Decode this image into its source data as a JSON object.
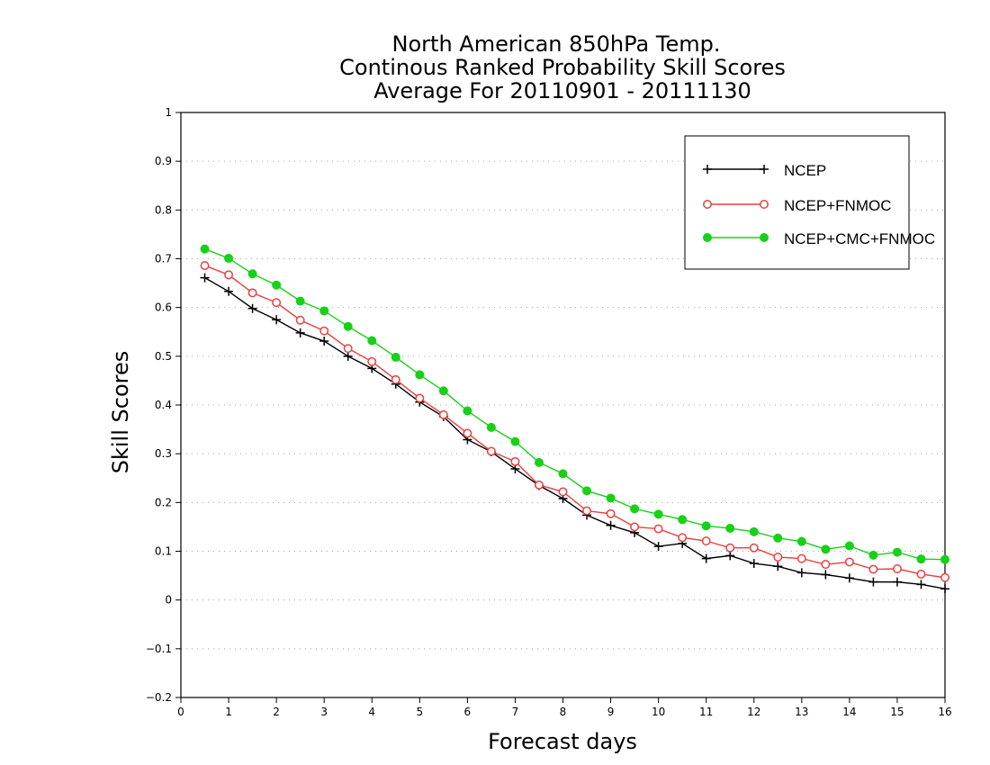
{
  "chart_data": {
    "type": "line",
    "title": [
      "North American 850hPa Temp.",
      "Continous Ranked Probability Skill Scores",
      "Average For 20110901 - 20111130"
    ],
    "xlabel": "Forecast days",
    "ylabel": "Skill Scores",
    "xlim": [
      0,
      16
    ],
    "ylim": [
      -0.2,
      1
    ],
    "xticks": [
      0,
      1,
      2,
      3,
      4,
      5,
      6,
      7,
      8,
      9,
      10,
      11,
      12,
      13,
      14,
      15,
      16
    ],
    "yticks": [
      -0.2,
      -0.1,
      0,
      0.1,
      0.2,
      0.3,
      0.4,
      0.5,
      0.6,
      0.7,
      0.8,
      0.9,
      1
    ],
    "ytick_labels": [
      "−0.2",
      "−0.1",
      "0",
      "0.1",
      "0.2",
      "0.3",
      "0.4",
      "0.5",
      "0.6",
      "0.7",
      "0.8",
      "0.9",
      "1"
    ],
    "grid": "horizontal dotted",
    "legend_position": "top-right",
    "x": [
      0.5,
      1.0,
      1.5,
      2.0,
      2.5,
      3.0,
      3.5,
      4.0,
      4.5,
      5.0,
      5.5,
      6.0,
      6.5,
      7.0,
      7.5,
      8.0,
      8.5,
      9.0,
      9.5,
      10.0,
      10.5,
      11.0,
      11.5,
      12.0,
      12.5,
      13.0,
      13.5,
      14.0,
      14.5,
      15.0,
      15.5,
      16.0
    ],
    "series": [
      {
        "name": "NCEP",
        "color": "#000000",
        "marker": "plus",
        "values": [
          0.661,
          0.633,
          0.598,
          0.575,
          0.548,
          0.531,
          0.5,
          0.475,
          0.443,
          0.406,
          0.376,
          0.329,
          0.304,
          0.269,
          0.235,
          0.208,
          0.174,
          0.153,
          0.138,
          0.11,
          0.116,
          0.085,
          0.091,
          0.075,
          0.069,
          0.056,
          0.052,
          0.045,
          0.037,
          0.037,
          0.032,
          0.023
        ]
      },
      {
        "name": "NCEP+FNMOC",
        "color": "#e8403f",
        "marker": "open-circle",
        "values": [
          0.686,
          0.667,
          0.63,
          0.61,
          0.574,
          0.552,
          0.516,
          0.489,
          0.452,
          0.414,
          0.38,
          0.342,
          0.305,
          0.284,
          0.236,
          0.222,
          0.183,
          0.177,
          0.15,
          0.146,
          0.128,
          0.121,
          0.107,
          0.107,
          0.088,
          0.085,
          0.073,
          0.078,
          0.063,
          0.064,
          0.053,
          0.046
        ]
      },
      {
        "name": "NCEP+CMC+FNMOC",
        "color": "#18d018",
        "marker": "filled-circle",
        "values": [
          0.72,
          0.701,
          0.669,
          0.646,
          0.613,
          0.593,
          0.561,
          0.532,
          0.498,
          0.462,
          0.429,
          0.388,
          0.354,
          0.325,
          0.282,
          0.259,
          0.224,
          0.209,
          0.187,
          0.176,
          0.165,
          0.152,
          0.147,
          0.14,
          0.127,
          0.12,
          0.104,
          0.111,
          0.092,
          0.098,
          0.084,
          0.083
        ]
      }
    ]
  }
}
